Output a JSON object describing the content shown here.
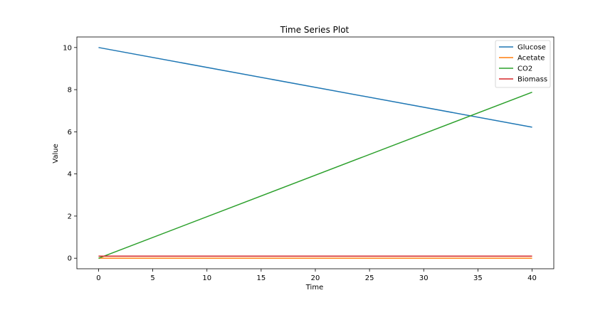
{
  "chart_data": {
    "type": "line",
    "title": "Time Series Plot",
    "xlabel": "Time",
    "ylabel": "Value",
    "xlim": [
      -2,
      42
    ],
    "ylim": [
      -0.5,
      10.5
    ],
    "xticks": [
      0,
      5,
      10,
      15,
      20,
      25,
      30,
      35,
      40
    ],
    "yticks": [
      0,
      2,
      4,
      6,
      8,
      10
    ],
    "grid": false,
    "legend_position": "top-right",
    "series": [
      {
        "name": "Glucose",
        "color": "#1f77b4",
        "x": [
          0,
          40
        ],
        "y": [
          10.0,
          6.22
        ]
      },
      {
        "name": "Acetate",
        "color": "#ff7f0e",
        "x": [
          0,
          40
        ],
        "y": [
          0.0,
          0.0
        ]
      },
      {
        "name": "CO2",
        "color": "#2ca02c",
        "x": [
          0,
          40
        ],
        "y": [
          0.0,
          7.88
        ]
      },
      {
        "name": "Biomass",
        "color": "#d62728",
        "x": [
          0,
          40
        ],
        "y": [
          0.1,
          0.1
        ]
      }
    ]
  }
}
